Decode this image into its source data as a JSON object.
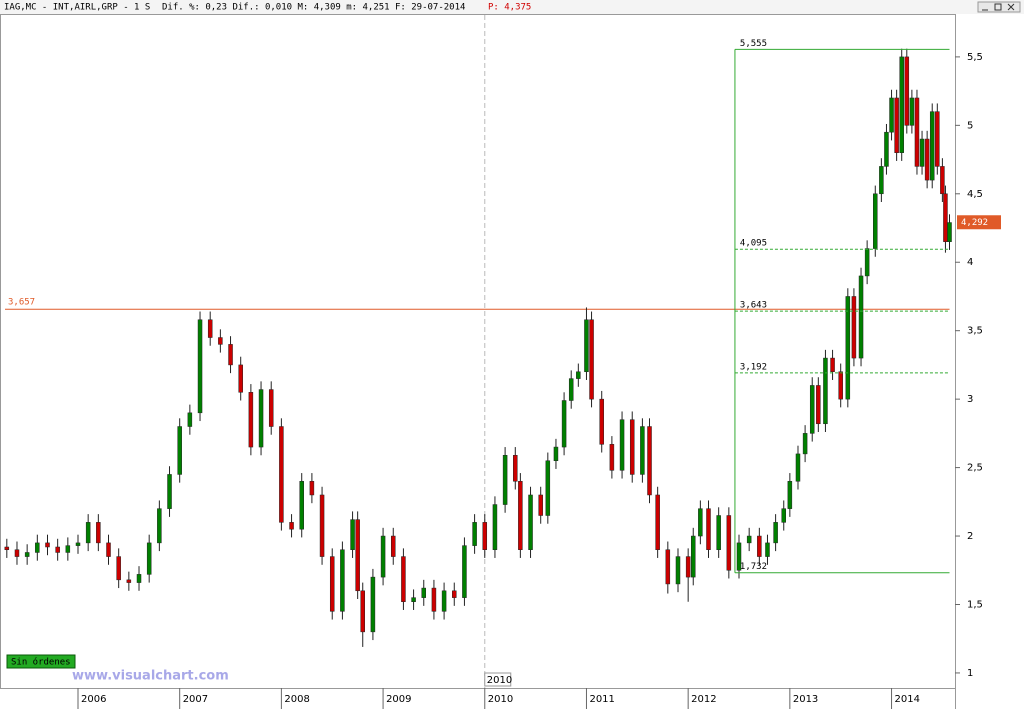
{
  "header": {
    "symbol": "IAG,MC - INT,AIRL,GRP -  1 S",
    "stats": "Dif. %: 0,23 Dif.: 0,010 M: 4,309 m: 4,251 F: 29-07-2014",
    "last": "P: 4,375"
  },
  "orders": "Sin órdenes",
  "watermark": "www.visualchart.com",
  "chart_data": {
    "type": "candlestick",
    "x": [
      2005.3,
      2005.4,
      2005.5,
      2005.6,
      2005.7,
      2005.8,
      2005.9,
      2006.0,
      2006.1,
      2006.2,
      2006.3,
      2006.4,
      2006.5,
      2006.6,
      2006.7,
      2006.8,
      2006.9,
      2007.0,
      2007.1,
      2007.2,
      2007.3,
      2007.4,
      2007.5,
      2007.6,
      2007.7,
      2007.8,
      2007.9,
      2008.0,
      2008.1,
      2008.2,
      2008.3,
      2008.4,
      2008.5,
      2008.6,
      2008.7,
      2008.75,
      2008.8,
      2008.9,
      2009.0,
      2009.1,
      2009.2,
      2009.3,
      2009.4,
      2009.5,
      2009.6,
      2009.7,
      2009.8,
      2009.9,
      2010.0,
      2010.1,
      2010.2,
      2010.3,
      2010.35,
      2010.45,
      2010.55,
      2010.62,
      2010.7,
      2010.78,
      2010.85,
      2010.92,
      2011.0,
      2011.05,
      2011.15,
      2011.25,
      2011.35,
      2011.45,
      2011.55,
      2011.62,
      2011.7,
      2011.8,
      2011.9,
      2012.0,
      2012.05,
      2012.12,
      2012.2,
      2012.3,
      2012.4,
      2012.5,
      2012.6,
      2012.7,
      2012.78,
      2012.86,
      2012.94,
      2013.0,
      2013.08,
      2013.15,
      2013.22,
      2013.28,
      2013.35,
      2013.42,
      2013.5,
      2013.57,
      2013.63,
      2013.7,
      2013.76,
      2013.84,
      2013.9,
      2013.95,
      2014.0,
      2014.05,
      2014.1,
      2014.15,
      2014.2,
      2014.25,
      2014.3,
      2014.35,
      2014.4,
      2014.45,
      2014.5,
      2014.53,
      2014.57
    ],
    "open": [
      1.92,
      1.9,
      1.85,
      1.88,
      1.95,
      1.92,
      1.88,
      1.93,
      1.95,
      2.1,
      1.95,
      1.85,
      1.68,
      1.66,
      1.72,
      1.95,
      2.2,
      2.45,
      2.8,
      2.9,
      3.58,
      3.45,
      3.4,
      3.25,
      3.05,
      2.65,
      3.07,
      2.8,
      2.1,
      2.05,
      2.4,
      2.3,
      1.85,
      1.45,
      1.9,
      2.12,
      1.6,
      1.3,
      1.7,
      2.0,
      1.85,
      1.52,
      1.55,
      1.62,
      1.45,
      1.6,
      1.55,
      1.93,
      2.1,
      1.9,
      2.23,
      2.59,
      2.4,
      1.9,
      2.3,
      2.15,
      2.55,
      2.65,
      2.99,
      3.15,
      3.2,
      3.58,
      3.0,
      2.67,
      2.48,
      2.85,
      2.45,
      2.8,
      2.3,
      1.9,
      1.65,
      1.85,
      1.7,
      2.0,
      2.2,
      1.9,
      2.15,
      1.75,
      1.95,
      2.0,
      1.85,
      1.95,
      2.1,
      2.2,
      2.4,
      2.6,
      2.75,
      3.1,
      2.82,
      3.3,
      3.2,
      3.0,
      3.75,
      3.3,
      3.9,
      4.1,
      4.5,
      4.7,
      4.95,
      5.2,
      4.8,
      5.5,
      5.0,
      5.2,
      4.7,
      4.9,
      4.6,
      5.1,
      4.7,
      4.5,
      4.15
    ],
    "high": [
      1.98,
      1.96,
      1.94,
      2.01,
      2.01,
      1.98,
      1.99,
      2.01,
      2.16,
      2.16,
      2.01,
      1.91,
      1.74,
      1.78,
      2.01,
      2.26,
      2.51,
      2.86,
      2.96,
      3.64,
      3.64,
      3.51,
      3.46,
      3.31,
      3.11,
      3.13,
      3.13,
      2.86,
      2.16,
      2.46,
      2.46,
      2.36,
      1.91,
      1.96,
      2.18,
      2.18,
      1.66,
      1.76,
      2.06,
      2.06,
      1.91,
      1.61,
      1.68,
      1.68,
      1.66,
      1.66,
      1.99,
      2.16,
      2.16,
      2.29,
      2.65,
      2.65,
      2.46,
      2.36,
      2.36,
      2.61,
      2.71,
      3.05,
      3.21,
      3.26,
      3.67,
      3.64,
      3.06,
      2.73,
      2.91,
      2.91,
      2.86,
      2.86,
      2.36,
      1.96,
      1.91,
      1.91,
      2.06,
      2.26,
      2.26,
      2.21,
      2.21,
      2.01,
      2.06,
      2.06,
      2.01,
      2.16,
      2.26,
      2.46,
      2.66,
      2.81,
      3.16,
      3.16,
      3.36,
      3.36,
      3.26,
      3.81,
      3.81,
      3.96,
      4.16,
      4.56,
      4.76,
      5.01,
      5.26,
      5.26,
      5.56,
      5.56,
      5.26,
      5.26,
      4.96,
      4.96,
      5.16,
      5.16,
      4.76,
      4.56,
      4.35
    ],
    "low": [
      1.84,
      1.79,
      1.79,
      1.82,
      1.86,
      1.82,
      1.82,
      1.87,
      1.89,
      1.89,
      1.79,
      1.62,
      1.6,
      1.6,
      1.66,
      1.89,
      2.14,
      2.39,
      2.74,
      2.84,
      3.39,
      3.34,
      3.19,
      2.99,
      2.59,
      2.59,
      2.74,
      2.04,
      1.99,
      1.99,
      2.24,
      1.79,
      1.39,
      1.39,
      1.84,
      1.54,
      1.19,
      1.24,
      1.64,
      1.79,
      1.46,
      1.46,
      1.49,
      1.39,
      1.39,
      1.49,
      1.49,
      1.87,
      1.84,
      1.84,
      2.17,
      2.34,
      1.84,
      1.84,
      2.09,
      2.09,
      2.49,
      2.59,
      2.93,
      3.09,
      3.14,
      2.94,
      2.61,
      2.42,
      2.42,
      2.39,
      2.39,
      2.24,
      1.84,
      1.58,
      1.59,
      1.52,
      1.64,
      1.94,
      1.84,
      1.84,
      1.69,
      1.69,
      1.89,
      1.79,
      1.79,
      1.89,
      2.04,
      2.14,
      2.34,
      2.54,
      2.69,
      2.76,
      2.76,
      3.14,
      2.94,
      2.94,
      3.24,
      3.24,
      3.84,
      4.04,
      4.44,
      4.64,
      4.89,
      4.74,
      4.74,
      4.94,
      4.94,
      4.64,
      4.64,
      4.54,
      4.54,
      4.64,
      4.44,
      4.07,
      4.09
    ],
    "close": [
      1.9,
      1.85,
      1.88,
      1.95,
      1.92,
      1.88,
      1.93,
      1.95,
      2.1,
      1.95,
      1.85,
      1.68,
      1.66,
      1.72,
      1.95,
      2.2,
      2.45,
      2.8,
      2.9,
      3.58,
      3.45,
      3.4,
      3.25,
      3.05,
      2.65,
      3.07,
      2.8,
      2.1,
      2.05,
      2.4,
      2.3,
      1.85,
      1.45,
      1.9,
      2.12,
      1.6,
      1.3,
      1.7,
      2.0,
      1.85,
      1.52,
      1.55,
      1.62,
      1.45,
      1.6,
      1.55,
      1.93,
      2.1,
      1.9,
      2.23,
      2.59,
      2.4,
      1.9,
      2.3,
      2.15,
      2.55,
      2.65,
      2.99,
      3.15,
      3.2,
      3.58,
      3.0,
      2.67,
      2.48,
      2.85,
      2.45,
      2.8,
      2.3,
      1.9,
      1.65,
      1.85,
      1.7,
      2.0,
      2.2,
      1.9,
      2.15,
      1.75,
      1.95,
      2.0,
      1.85,
      1.95,
      2.1,
      2.2,
      2.4,
      2.6,
      2.75,
      3.1,
      2.82,
      3.3,
      3.2,
      3.0,
      3.75,
      3.3,
      3.9,
      4.1,
      4.5,
      4.7,
      4.95,
      5.2,
      4.8,
      5.5,
      5.0,
      5.2,
      4.7,
      4.9,
      4.6,
      5.1,
      4.7,
      4.5,
      4.15,
      4.29
    ],
    "up_color": "#008000",
    "down_color": "#cc0000",
    "xlim": [
      2005.233,
      2014.624
    ],
    "ylim": [
      0.89,
      5.806
    ],
    "xticks": [
      2006,
      2007,
      2008,
      2009,
      2010,
      2011,
      2012,
      2013,
      2014
    ],
    "yticks": [
      1,
      {
        "value": 1.5,
        "label": "1,5"
      },
      2,
      {
        "value": 2.5,
        "label": "2,5"
      },
      3,
      {
        "value": 3.5,
        "label": "3,5"
      },
      4,
      {
        "value": 4.5,
        "label": "4,5"
      },
      5,
      {
        "value": 5.5,
        "label": "5,5"
      }
    ],
    "last_value": {
      "value": 4.292,
      "label": "4,292"
    },
    "hline": {
      "value": 3.657,
      "label": "3,657",
      "color": "#e05a28"
    },
    "levels_color": "#33aa33",
    "levels_x": [
      2012.46,
      2014.57
    ],
    "levels": [
      {
        "value": 5.555,
        "label": "5,555"
      },
      {
        "value": 4.095,
        "label": "4,095"
      },
      {
        "value": 3.643,
        "label": "3,643"
      },
      {
        "value": 3.192,
        "label": "3,192"
      },
      {
        "value": 1.732,
        "label": "1,732"
      }
    ],
    "cursor_x": {
      "value": 2010,
      "label": "2010"
    }
  }
}
